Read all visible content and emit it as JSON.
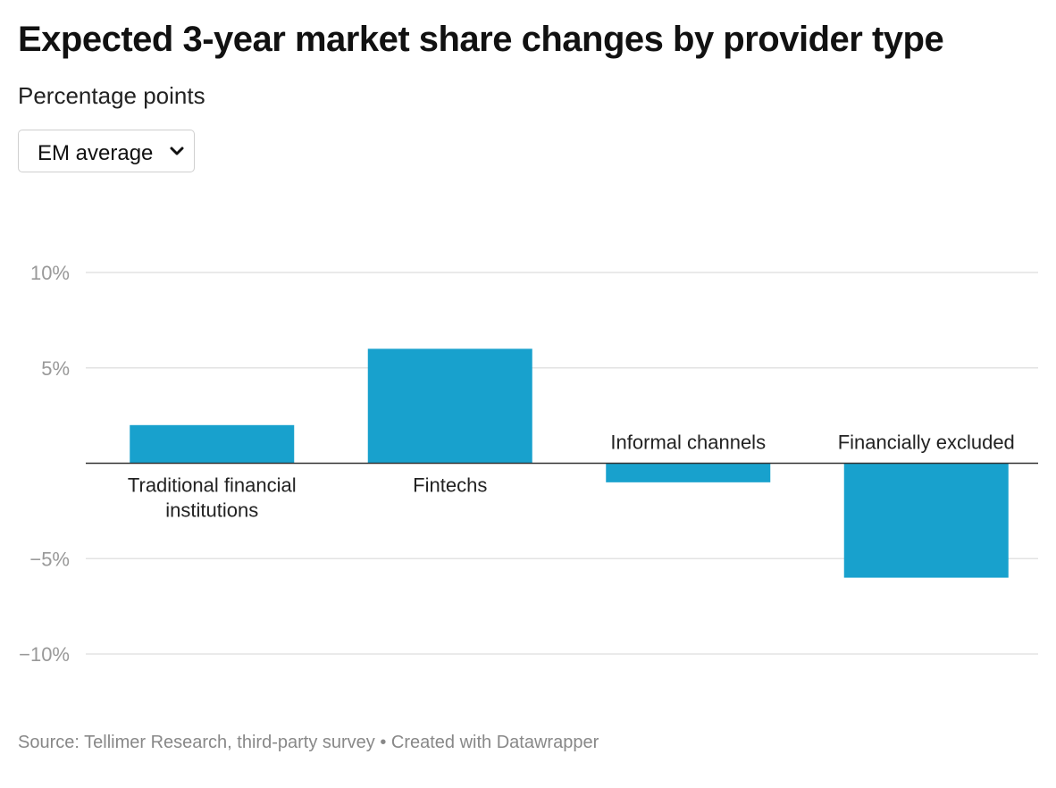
{
  "header": {
    "title": "Expected 3-year market share changes by provider type",
    "subtitle": "Percentage points"
  },
  "dropdown": {
    "selected": "EM average",
    "icon": "chevron-down-icon"
  },
  "chart_data": {
    "type": "bar",
    "categories": [
      "Traditional financial institutions",
      "Fintechs",
      "Informal channels",
      "Financially excluded"
    ],
    "category_lines": [
      [
        "Traditional financial",
        "institutions"
      ],
      [
        "Fintechs"
      ],
      [
        "Informal channels"
      ],
      [
        "Financially excluded"
      ]
    ],
    "values": [
      2,
      6,
      -1,
      -6
    ],
    "ylim": [
      -10,
      10
    ],
    "yticks": [
      10,
      5,
      -5,
      -10
    ],
    "ytick_labels": [
      "10%",
      "5%",
      "−5%",
      "−10%"
    ],
    "grid": true,
    "bar_color": "#18a1cd",
    "grid_color": "#e3e3e3",
    "baseline_color": "#333333"
  },
  "footer": {
    "source": "Source: Tellimer Research, third-party survey • Created with Datawrapper"
  }
}
